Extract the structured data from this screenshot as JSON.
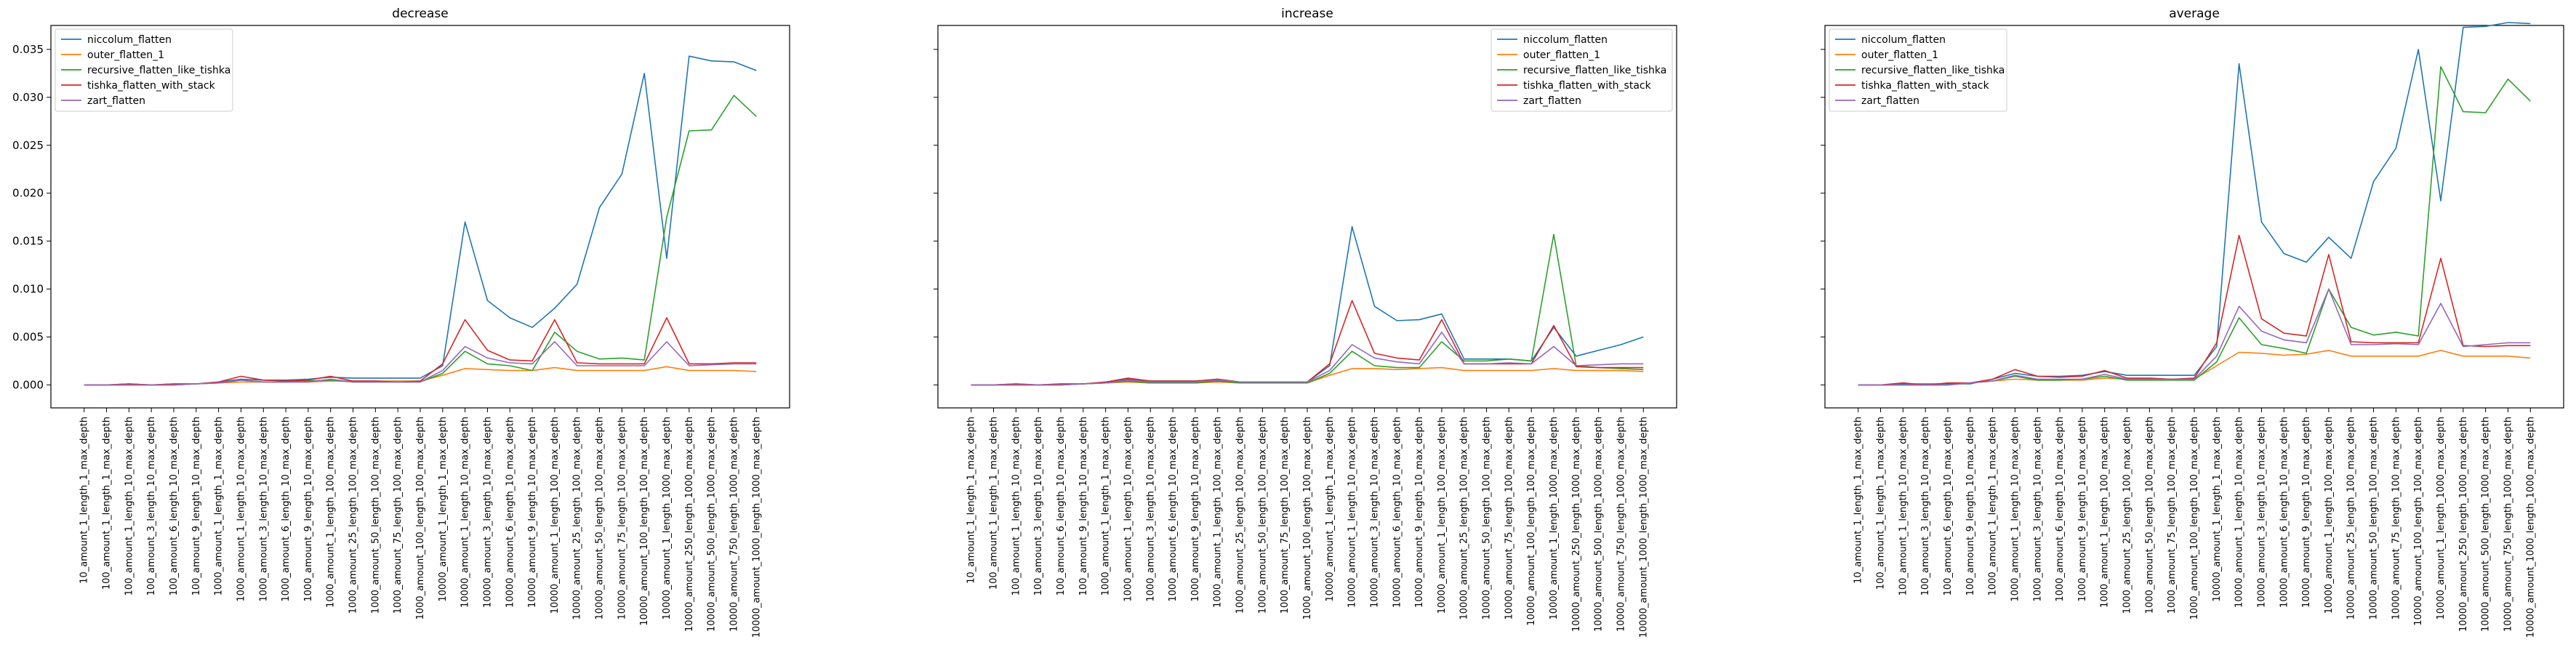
{
  "chart_data": [
    {
      "type": "line",
      "title": "decrease",
      "xlabel": "",
      "ylabel": "",
      "ylim": [
        -0.0024,
        0.0375
      ],
      "legend_loc": "upper-left",
      "categories": [
        "10_amount_1_length_1_max_depth",
        "100_amount_1_length_1_max_depth",
        "100_amount_1_length_10_max_depth",
        "100_amount_3_length_10_max_depth",
        "100_amount_6_length_10_max_depth",
        "100_amount_9_length_10_max_depth",
        "1000_amount_1_length_1_max_depth",
        "1000_amount_1_length_10_max_depth",
        "1000_amount_3_length_10_max_depth",
        "1000_amount_6_length_10_max_depth",
        "1000_amount_9_length_10_max_depth",
        "1000_amount_1_length_100_max_depth",
        "1000_amount_25_length_100_max_depth",
        "1000_amount_50_length_100_max_depth",
        "1000_amount_75_length_100_max_depth",
        "1000_amount_100_length_100_max_depth",
        "10000_amount_1_length_1_max_depth",
        "10000_amount_1_length_10_max_depth",
        "10000_amount_3_length_10_max_depth",
        "10000_amount_6_length_10_max_depth",
        "10000_amount_9_length_10_max_depth",
        "10000_amount_1_length_100_max_depth",
        "10000_amount_25_length_100_max_depth",
        "10000_amount_50_length_100_max_depth",
        "10000_amount_75_length_100_max_depth",
        "10000_amount_100_length_100_max_depth",
        "10000_amount_1_length_1000_max_depth",
        "10000_amount_250_length_1000_max_depth",
        "10000_amount_500_length_1000_max_depth",
        "10000_amount_750_length_1000_max_depth",
        "10000_amount_1000_length_1000_max_depth"
      ],
      "yticks": [
        "0.000",
        "0.005",
        "0.010",
        "0.015",
        "0.020",
        "0.025",
        "0.030",
        "0.035"
      ],
      "series": [
        {
          "name": "niccolum_flatten",
          "color": "#1f77b4",
          "values": [
            0.0,
            0.0,
            0.0001,
            0.0,
            0.0001,
            0.0001,
            0.0003,
            0.0006,
            0.0005,
            0.0005,
            0.0006,
            0.0008,
            0.0007,
            0.0007,
            0.0007,
            0.0007,
            0.002,
            0.017,
            0.0088,
            0.007,
            0.006,
            0.008,
            0.0105,
            0.0185,
            0.022,
            0.0325,
            0.0132,
            0.0343,
            0.0338,
            0.0337,
            0.0328
          ]
        },
        {
          "name": "outer_flatten_1",
          "color": "#ff7f0e",
          "values": [
            0.0,
            0.0,
            0.0,
            0.0,
            0.0,
            0.0001,
            0.0002,
            0.0003,
            0.0003,
            0.0003,
            0.0003,
            0.0004,
            0.0004,
            0.0004,
            0.0004,
            0.0004,
            0.001,
            0.0017,
            0.0016,
            0.0015,
            0.0015,
            0.0018,
            0.0015,
            0.0015,
            0.0015,
            0.0015,
            0.0019,
            0.0015,
            0.0015,
            0.0015,
            0.0014
          ]
        },
        {
          "name": "recursive_flatten_like_tishka",
          "color": "#2ca02c",
          "values": [
            0.0,
            0.0,
            0.0,
            0.0,
            0.0,
            0.0001,
            0.0002,
            0.0005,
            0.0003,
            0.0003,
            0.0004,
            0.0005,
            0.0003,
            0.0003,
            0.0003,
            0.0003,
            0.0012,
            0.0035,
            0.0022,
            0.002,
            0.0015,
            0.0055,
            0.0035,
            0.0027,
            0.0028,
            0.0026,
            0.0175,
            0.0265,
            0.0266,
            0.0302,
            0.028
          ]
        },
        {
          "name": "tishka_flatten_with_stack",
          "color": "#d62728",
          "values": [
            0.0,
            0.0,
            0.0001,
            0.0,
            0.0001,
            0.0001,
            0.0003,
            0.0009,
            0.0005,
            0.0004,
            0.0005,
            0.0009,
            0.0004,
            0.0004,
            0.0003,
            0.0004,
            0.0022,
            0.0068,
            0.0036,
            0.0026,
            0.0025,
            0.0068,
            0.0023,
            0.0022,
            0.0022,
            0.0022,
            0.007,
            0.0022,
            0.0022,
            0.0023,
            0.0023
          ]
        },
        {
          "name": "zart_flatten",
          "color": "#9467bd",
          "values": [
            0.0,
            0.0,
            0.0,
            0.0,
            0.0,
            0.0001,
            0.0002,
            0.0005,
            0.0003,
            0.0003,
            0.0003,
            0.0006,
            0.0003,
            0.0003,
            0.0003,
            0.0003,
            0.0015,
            0.004,
            0.0028,
            0.0023,
            0.0022,
            0.0045,
            0.002,
            0.002,
            0.002,
            0.002,
            0.0045,
            0.002,
            0.0021,
            0.0022,
            0.0022
          ]
        }
      ]
    },
    {
      "type": "line",
      "title": "increase",
      "xlabel": "",
      "ylabel": "",
      "ylim": [
        -0.0024,
        0.0375
      ],
      "legend_loc": "upper-right",
      "categories": [
        "10_amount_1_length_1_max_depth",
        "100_amount_1_length_1_max_depth",
        "100_amount_1_length_10_max_depth",
        "100_amount_3_length_10_max_depth",
        "100_amount_6_length_10_max_depth",
        "100_amount_9_length_10_max_depth",
        "1000_amount_1_length_1_max_depth",
        "1000_amount_1_length_10_max_depth",
        "1000_amount_3_length_10_max_depth",
        "1000_amount_6_length_10_max_depth",
        "1000_amount_9_length_10_max_depth",
        "1000_amount_1_length_100_max_depth",
        "1000_amount_25_length_100_max_depth",
        "1000_amount_50_length_100_max_depth",
        "1000_amount_75_length_100_max_depth",
        "1000_amount_100_length_100_max_depth",
        "10000_amount_1_length_1_max_depth",
        "10000_amount_1_length_10_max_depth",
        "10000_amount_3_length_10_max_depth",
        "10000_amount_6_length_10_max_depth",
        "10000_amount_9_length_10_max_depth",
        "10000_amount_1_length_100_max_depth",
        "10000_amount_25_length_100_max_depth",
        "10000_amount_50_length_100_max_depth",
        "10000_amount_75_length_100_max_depth",
        "10000_amount_100_length_100_max_depth",
        "10000_amount_1_length_1000_max_depth",
        "10000_amount_250_length_1000_max_depth",
        "10000_amount_500_length_1000_max_depth",
        "10000_amount_750_length_1000_max_depth",
        "10000_amount_1000_length_1000_max_depth"
      ],
      "yticks": [],
      "series": [
        {
          "name": "niccolum_flatten",
          "color": "#1f77b4",
          "values": [
            0.0,
            0.0,
            0.0001,
            0.0,
            0.0001,
            0.0001,
            0.0003,
            0.0006,
            0.0004,
            0.0004,
            0.0004,
            0.0006,
            0.0003,
            0.0003,
            0.0003,
            0.0003,
            0.002,
            0.0165,
            0.0082,
            0.0067,
            0.0068,
            0.0074,
            0.0027,
            0.0027,
            0.0027,
            0.0025,
            0.006,
            0.003,
            0.0036,
            0.0042,
            0.005
          ]
        },
        {
          "name": "outer_flatten_1",
          "color": "#ff7f0e",
          "values": [
            0.0,
            0.0,
            0.0,
            0.0,
            0.0,
            0.0001,
            0.0002,
            0.0003,
            0.0002,
            0.0002,
            0.0002,
            0.0003,
            0.0002,
            0.0002,
            0.0002,
            0.0002,
            0.001,
            0.0017,
            0.0017,
            0.0016,
            0.0017,
            0.0018,
            0.0015,
            0.0015,
            0.0015,
            0.0015,
            0.0017,
            0.0015,
            0.0015,
            0.0015,
            0.0014
          ]
        },
        {
          "name": "recursive_flatten_like_tishka",
          "color": "#2ca02c",
          "values": [
            0.0,
            0.0,
            0.0,
            0.0,
            0.0,
            0.0001,
            0.0002,
            0.0004,
            0.0002,
            0.0002,
            0.0002,
            0.0004,
            0.0002,
            0.0002,
            0.0002,
            0.0002,
            0.0012,
            0.0035,
            0.002,
            0.0018,
            0.0018,
            0.0045,
            0.0025,
            0.0025,
            0.0027,
            0.0025,
            0.0157,
            0.002,
            0.0018,
            0.0017,
            0.0016
          ]
        },
        {
          "name": "tishka_flatten_with_stack",
          "color": "#d62728",
          "values": [
            0.0,
            0.0,
            0.0001,
            0.0,
            0.0001,
            0.0001,
            0.0003,
            0.0007,
            0.0004,
            0.0004,
            0.0004,
            0.0006,
            0.0003,
            0.0003,
            0.0003,
            0.0003,
            0.0022,
            0.0088,
            0.0033,
            0.0028,
            0.0026,
            0.0068,
            0.0022,
            0.0022,
            0.0022,
            0.0022,
            0.0062,
            0.0019,
            0.0018,
            0.0018,
            0.0018
          ]
        },
        {
          "name": "zart_flatten",
          "color": "#9467bd",
          "values": [
            0.0,
            0.0,
            0.0,
            0.0,
            0.0,
            0.0001,
            0.0002,
            0.0005,
            0.0003,
            0.0003,
            0.0003,
            0.0005,
            0.0003,
            0.0003,
            0.0003,
            0.0003,
            0.0015,
            0.0042,
            0.0028,
            0.0024,
            0.0022,
            0.0055,
            0.0022,
            0.0022,
            0.0023,
            0.0022,
            0.004,
            0.002,
            0.0021,
            0.0022,
            0.0022
          ]
        }
      ]
    },
    {
      "type": "line",
      "title": "average",
      "xlabel": "",
      "ylabel": "",
      "ylim": [
        -0.0024,
        0.0375
      ],
      "legend_loc": "upper-left",
      "categories": [
        "10_amount_1_length_1_max_depth",
        "100_amount_1_length_1_max_depth",
        "100_amount_1_length_10_max_depth",
        "100_amount_3_length_10_max_depth",
        "100_amount_6_length_10_max_depth",
        "100_amount_9_length_10_max_depth",
        "1000_amount_1_length_1_max_depth",
        "1000_amount_1_length_10_max_depth",
        "1000_amount_3_length_10_max_depth",
        "1000_amount_6_length_10_max_depth",
        "1000_amount_9_length_10_max_depth",
        "1000_amount_1_length_100_max_depth",
        "1000_amount_25_length_100_max_depth",
        "1000_amount_50_length_100_max_depth",
        "1000_amount_75_length_100_max_depth",
        "1000_amount_100_length_100_max_depth",
        "10000_amount_1_length_1_max_depth",
        "10000_amount_1_length_10_max_depth",
        "10000_amount_3_length_10_max_depth",
        "10000_amount_6_length_10_max_depth",
        "10000_amount_9_length_10_max_depth",
        "10000_amount_1_length_100_max_depth",
        "10000_amount_25_length_100_max_depth",
        "10000_amount_50_length_100_max_depth",
        "10000_amount_75_length_100_max_depth",
        "10000_amount_100_length_100_max_depth",
        "10000_amount_1_length_1000_max_depth",
        "10000_amount_250_length_1000_max_depth",
        "10000_amount_500_length_1000_max_depth",
        "10000_amount_750_length_1000_max_depth",
        "10000_amount_1000_length_1000_max_depth"
      ],
      "yticks": [],
      "series": [
        {
          "name": "niccolum_flatten",
          "color": "#1f77b4",
          "values": [
            0.0,
            0.0,
            0.0001,
            0.0001,
            0.0001,
            0.0001,
            0.0006,
            0.0012,
            0.0009,
            0.0009,
            0.001,
            0.0014,
            0.001,
            0.001,
            0.001,
            0.001,
            0.004,
            0.0335,
            0.017,
            0.0137,
            0.0128,
            0.0154,
            0.0132,
            0.0212,
            0.0247,
            0.035,
            0.0192,
            0.0373,
            0.0374,
            0.0378,
            0.0377
          ]
        },
        {
          "name": "outer_flatten_1",
          "color": "#ff7f0e",
          "values": [
            0.0,
            0.0,
            0.0,
            0.0,
            0.0,
            0.0002,
            0.0004,
            0.0006,
            0.0005,
            0.0005,
            0.0005,
            0.0007,
            0.0006,
            0.0006,
            0.0006,
            0.0006,
            0.002,
            0.0034,
            0.0033,
            0.0031,
            0.0032,
            0.0036,
            0.003,
            0.003,
            0.003,
            0.003,
            0.0036,
            0.003,
            0.003,
            0.003,
            0.0028
          ]
        },
        {
          "name": "recursive_flatten_like_tishka",
          "color": "#2ca02c",
          "values": [
            0.0,
            0.0,
            0.0,
            0.0,
            0.0,
            0.0002,
            0.0004,
            0.0009,
            0.0005,
            0.0005,
            0.0006,
            0.0009,
            0.0005,
            0.0005,
            0.0005,
            0.0005,
            0.0024,
            0.007,
            0.0042,
            0.0038,
            0.0033,
            0.01,
            0.006,
            0.0052,
            0.0055,
            0.0051,
            0.0332,
            0.0285,
            0.0284,
            0.0319,
            0.0296
          ]
        },
        {
          "name": "tishka_flatten_with_stack",
          "color": "#d62728",
          "values": [
            0.0,
            0.0,
            0.0002,
            0.0,
            0.0002,
            0.0002,
            0.0006,
            0.0016,
            0.0009,
            0.0008,
            0.0009,
            0.0015,
            0.0007,
            0.0007,
            0.0006,
            0.0007,
            0.0044,
            0.0156,
            0.0069,
            0.0054,
            0.0051,
            0.0136,
            0.0045,
            0.0044,
            0.0044,
            0.0044,
            0.0132,
            0.0041,
            0.004,
            0.0041,
            0.0041
          ]
        },
        {
          "name": "zart_flatten",
          "color": "#9467bd",
          "values": [
            0.0,
            0.0,
            0.0,
            0.0,
            0.0,
            0.0002,
            0.0004,
            0.001,
            0.0006,
            0.0006,
            0.0006,
            0.0011,
            0.0006,
            0.0006,
            0.0006,
            0.0006,
            0.003,
            0.0082,
            0.0056,
            0.0047,
            0.0044,
            0.01,
            0.0042,
            0.0042,
            0.0043,
            0.0042,
            0.0085,
            0.004,
            0.0042,
            0.0044,
            0.0044
          ]
        }
      ]
    }
  ]
}
